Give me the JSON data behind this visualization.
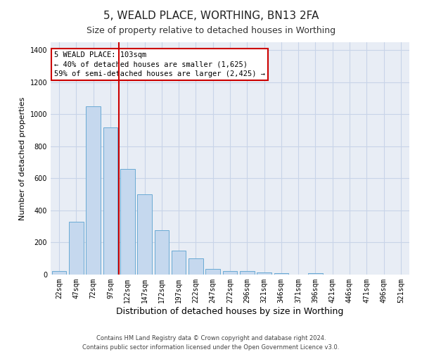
{
  "title": "5, WEALD PLACE, WORTHING, BN13 2FA",
  "subtitle": "Size of property relative to detached houses in Worthing",
  "xlabel": "Distribution of detached houses by size in Worthing",
  "ylabel": "Number of detached properties",
  "categories": [
    "22sqm",
    "47sqm",
    "72sqm",
    "97sqm",
    "122sqm",
    "147sqm",
    "172sqm",
    "197sqm",
    "222sqm",
    "247sqm",
    "272sqm",
    "296sqm",
    "321sqm",
    "346sqm",
    "371sqm",
    "396sqm",
    "421sqm",
    "446sqm",
    "471sqm",
    "496sqm",
    "521sqm"
  ],
  "values": [
    20,
    330,
    1050,
    920,
    660,
    500,
    275,
    150,
    100,
    35,
    20,
    20,
    15,
    10,
    0,
    10,
    0,
    0,
    0,
    0,
    0
  ],
  "bar_color": "#c5d8ee",
  "bar_edge_color": "#6aaad4",
  "red_line_color": "#cc0000",
  "annotation_text": "5 WEALD PLACE: 103sqm\n← 40% of detached houses are smaller (1,625)\n59% of semi-detached houses are larger (2,425) →",
  "annotation_box_color": "#ffffff",
  "annotation_box_edge": "#cc0000",
  "ylim": [
    0,
    1450
  ],
  "yticks": [
    0,
    200,
    400,
    600,
    800,
    1000,
    1200,
    1400
  ],
  "grid_color": "#c8d4e8",
  "bg_color": "#e8edf5",
  "footnote": "Contains HM Land Registry data © Crown copyright and database right 2024.\nContains public sector information licensed under the Open Government Licence v3.0.",
  "title_fontsize": 11,
  "subtitle_fontsize": 9,
  "xlabel_fontsize": 9,
  "ylabel_fontsize": 8,
  "tick_fontsize": 7,
  "annot_fontsize": 7.5,
  "footnote_fontsize": 6
}
